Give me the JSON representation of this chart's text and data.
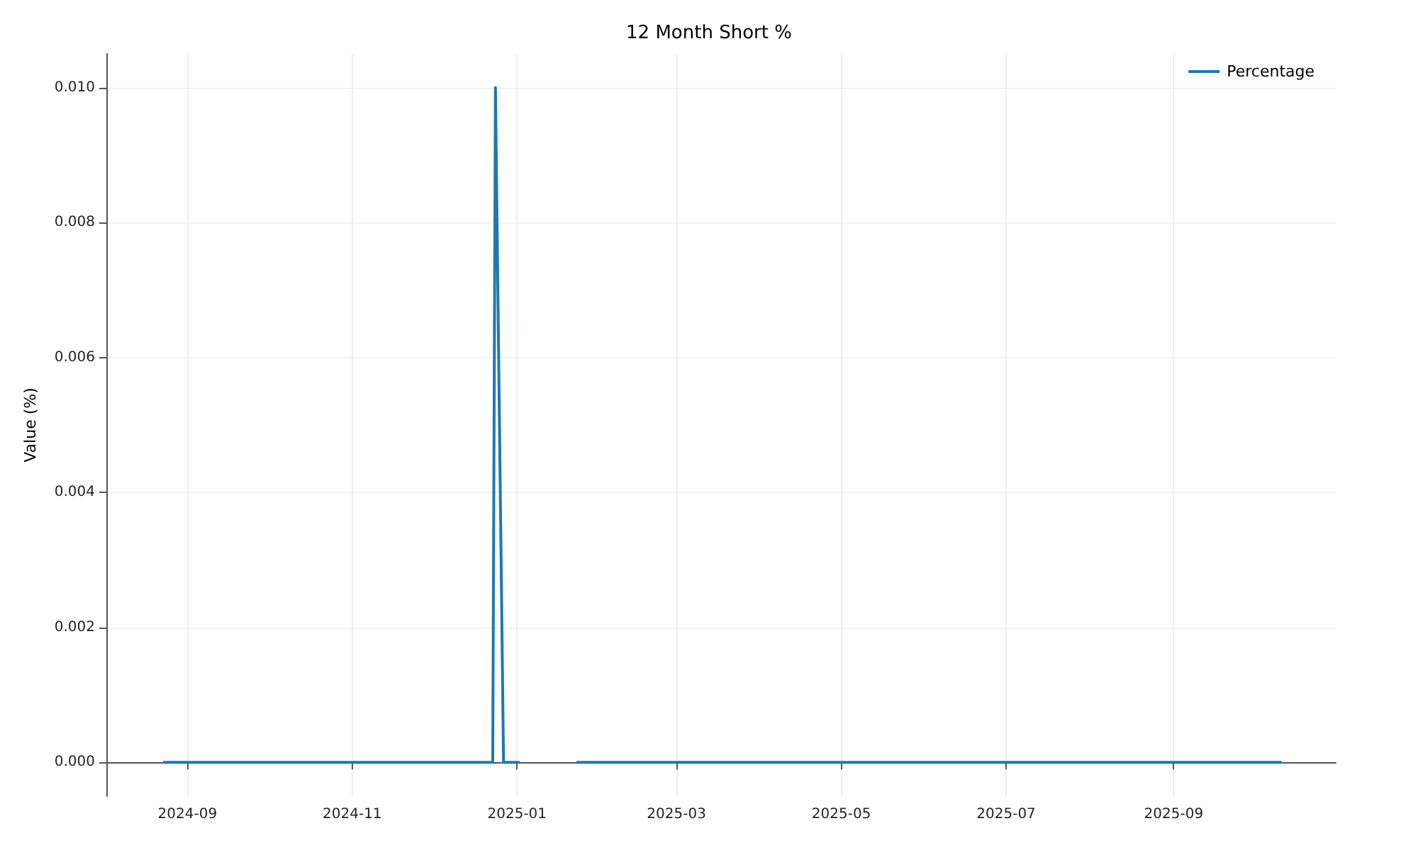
{
  "chart_data": {
    "type": "line",
    "title": "12 Month Short %",
    "ylabel": "Value (%)",
    "x": [
      "2024-08-23",
      "2024-12-23",
      "2024-12-24",
      "2024-12-27",
      "2025-01-02",
      "2025-01-12",
      "2025-01-23",
      "2025-10-11"
    ],
    "series": [
      {
        "name": "Percentage",
        "color": "#1f77b4",
        "values": [
          0,
          0,
          0.01,
          0,
          0,
          null,
          0,
          0
        ]
      }
    ],
    "xlim": [
      "2024-08-02",
      "2025-10-31"
    ],
    "xticks": [
      "2024-09",
      "2024-11",
      "2025-01",
      "2025-03",
      "2025-05",
      "2025-07",
      "2025-09"
    ],
    "ylim": [
      -0.0005,
      0.0105
    ],
    "yticks": [
      {
        "value": 0,
        "label": "0.000"
      },
      {
        "value": 0.002,
        "label": "0.002"
      },
      {
        "value": 0.004,
        "label": "0.004"
      },
      {
        "value": 0.006,
        "label": "0.006"
      },
      {
        "value": 0.008,
        "label": "0.008"
      },
      {
        "value": 0.01,
        "label": "0.010"
      }
    ],
    "grid": true,
    "legend": "top right",
    "line_style": "solid",
    "marker": "none"
  }
}
